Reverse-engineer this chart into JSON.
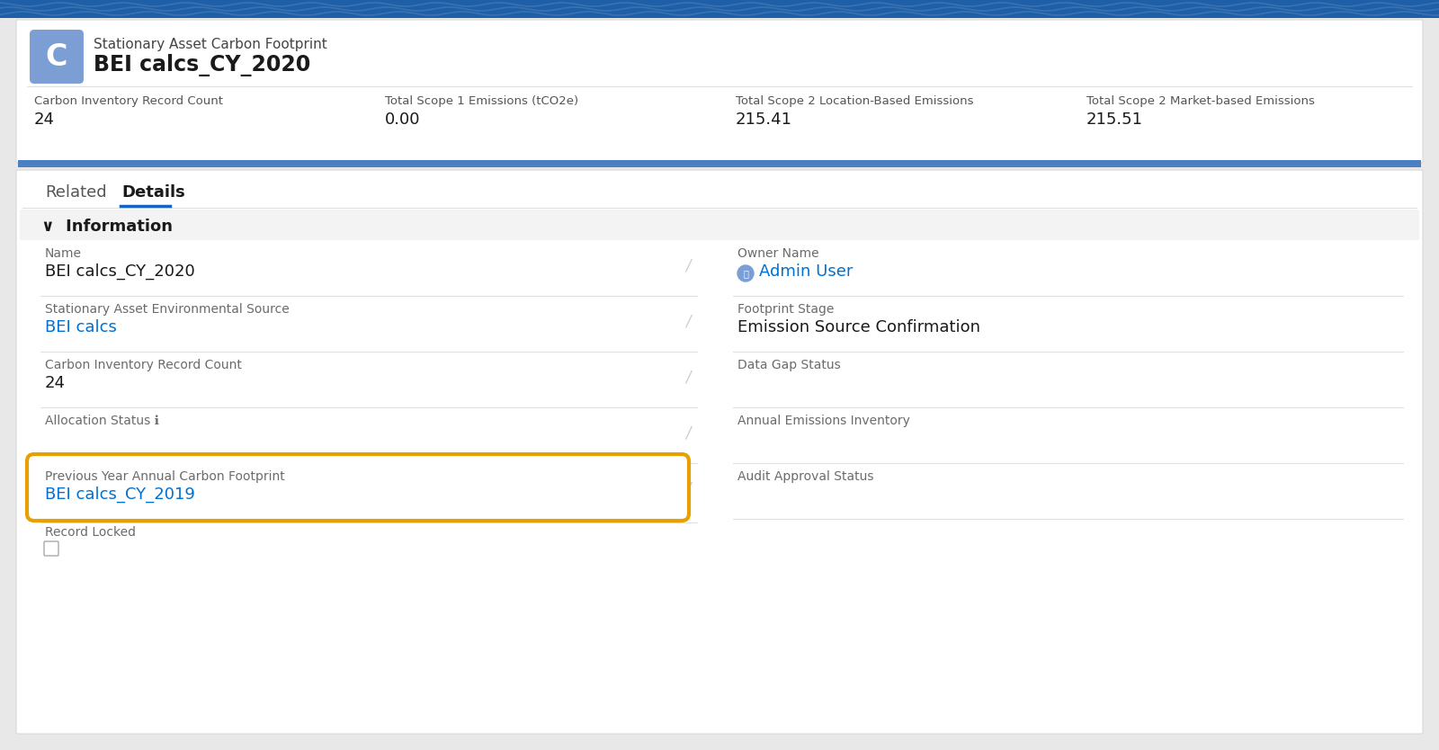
{
  "bg_color": "#e8e8e8",
  "top_banner_color": "#1e5fa8",
  "header_bg": "#ffffff",
  "header_border": "#d8d8d8",
  "icon_bg": "#7b9fd4",
  "record_type": "Stationary Asset Carbon Footprint",
  "record_name": "BEI calcs_CY_2020",
  "stats": [
    {
      "label": "Carbon Inventory Record Count",
      "value": "24"
    },
    {
      "label": "Total Scope 1 Emissions (tCO2e)",
      "value": "0.00"
    },
    {
      "label": "Total Scope 2 Location-Based Emissions",
      "value": "215.41"
    },
    {
      "label": "Total Scope 2 Market-based Emissions",
      "value": "215.51"
    }
  ],
  "tab_related": "Related",
  "tab_details": "Details",
  "tab_active_color": "#1565c0",
  "section_title": "Information",
  "fields_left": [
    {
      "label": "Name",
      "value": "BEI calcs_CY_2020",
      "is_link": false,
      "highlighted": false
    },
    {
      "label": "Stationary Asset Environmental Source",
      "value": "BEI calcs",
      "is_link": true,
      "highlighted": false
    },
    {
      "label": "Carbon Inventory Record Count",
      "value": "24",
      "is_link": false,
      "highlighted": false
    },
    {
      "label": "Allocation Status ℹ",
      "value": "",
      "is_link": false,
      "highlighted": false
    },
    {
      "label": "Previous Year Annual Carbon Footprint",
      "value": "BEI calcs_CY_2019",
      "is_link": true,
      "highlighted": true
    }
  ],
  "fields_right": [
    {
      "label": "Owner Name",
      "value": "Admin User",
      "is_link": true,
      "has_icon": true
    },
    {
      "label": "Footprint Stage",
      "value": "Emission Source Confirmation",
      "is_link": false
    },
    {
      "label": "Data Gap Status",
      "value": "",
      "is_link": false
    },
    {
      "label": "Annual Emissions Inventory",
      "value": "",
      "is_link": false
    },
    {
      "label": "Audit Approval Status",
      "value": "",
      "is_link": false
    }
  ],
  "record_locked_label": "Record Locked",
  "link_color": "#0070d2",
  "text_color": "#1a1a1a",
  "label_color": "#6b6b6b",
  "value_color": "#1a1a1a",
  "highlight_border_color": "#e8a000",
  "white": "#ffffff",
  "divider_color": "#e0e0e0",
  "tab_inactive_color": "#444444",
  "info_bg": "#f3f3f3",
  "blue_strip_color": "#4a7fc1"
}
